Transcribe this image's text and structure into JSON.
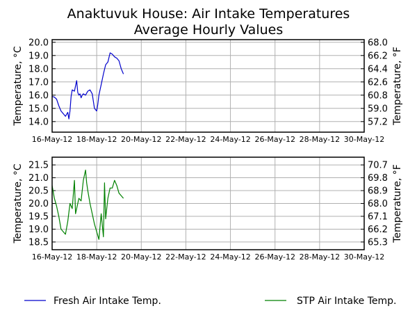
{
  "chart_data": {
    "title": "Anaktuvuk House: Air Intake Temperatures",
    "subtitle": "Average Hourly Values",
    "x_tick_labels": [
      "16-May-12",
      "18-May-12",
      "20-May-12",
      "22-May-12",
      "24-May-12",
      "26-May-12",
      "28-May-12",
      "30-May-12"
    ],
    "legend_placement": "bottom",
    "charts": [
      {
        "type": "line",
        "ylabel_left": "Temperature, °C",
        "ylabel_right": "Temperature, °F",
        "ylim": [
          13.2,
          20.2
        ],
        "y_ticks_left": [
          "14.0",
          "15.0",
          "16.0",
          "17.0",
          "18.0",
          "19.0",
          "20.0"
        ],
        "y_ticks_right": [
          "57.2",
          "59.0",
          "60.8",
          "62.6",
          "64.4",
          "66.2",
          "68.0"
        ],
        "grid": true,
        "series": [
          {
            "name": "Fresh Air Intake Temp.",
            "color": "#0000cc",
            "x": [
              0,
              0.1,
              0.2,
              0.3,
              0.4,
              0.5,
              0.6,
              0.7,
              0.75,
              0.8,
              0.85,
              0.9,
              1.0,
              1.1,
              1.15,
              1.2,
              1.25,
              1.3,
              1.35,
              1.4,
              1.5,
              1.6,
              1.7,
              1.8,
              1.9,
              2.0,
              2.05,
              2.1,
              2.2,
              2.3,
              2.4,
              2.5,
              2.6,
              2.7,
              2.8,
              2.9,
              3.0,
              3.1,
              3.2,
              3.3,
              3.4,
              3.5,
              3.55,
              3.6
            ],
            "y": [
              15.9,
              15.85,
              15.7,
              15.2,
              14.8,
              14.6,
              14.4,
              14.7,
              14.2,
              14.8,
              15.9,
              16.4,
              16.3,
              17.1,
              16.2,
              16.0,
              16.1,
              15.8,
              16.0,
              16.1,
              16.0,
              16.3,
              16.4,
              16.1,
              15.0,
              14.8,
              15.3,
              16.0,
              16.8,
              17.6,
              18.3,
              18.5,
              19.2,
              19.1,
              18.9,
              18.8,
              18.6,
              18.0,
              17.6,
              null,
              null,
              null,
              null,
              null
            ]
          }
        ]
      },
      {
        "type": "line",
        "ylabel_left": "Temperature, °C",
        "ylabel_right": "Temperature, °F",
        "ylim": [
          18.2,
          21.8
        ],
        "y_ticks_left": [
          "18.5",
          "19.0",
          "19.5",
          "20.0",
          "20.5",
          "21.0",
          "21.5"
        ],
        "y_ticks_right": [
          "65.3",
          "66.2",
          "67.1",
          "68.0",
          "68.9",
          "69.8",
          "70.7"
        ],
        "grid": true,
        "series": [
          {
            "name": "STP Air Intake Temp.",
            "color": "#008000",
            "x": [
              0,
              0.1,
              0.2,
              0.3,
              0.4,
              0.5,
              0.6,
              0.7,
              0.8,
              0.9,
              1.0,
              1.05,
              1.1,
              1.2,
              1.3,
              1.4,
              1.5,
              1.55,
              1.6,
              1.7,
              1.8,
              1.9,
              2.0,
              2.1,
              2.2,
              2.3,
              2.35,
              2.4,
              2.5,
              2.6,
              2.7,
              2.8,
              2.9,
              3.0,
              3.1,
              3.2,
              3.3,
              3.4,
              3.5
            ],
            "y": [
              20.7,
              20.2,
              19.9,
              19.5,
              19.0,
              18.9,
              18.8,
              19.3,
              20.0,
              19.8,
              20.9,
              19.6,
              19.8,
              20.2,
              20.1,
              20.9,
              21.3,
              20.8,
              20.5,
              20.0,
              19.6,
              19.2,
              18.9,
              18.6,
              19.6,
              18.7,
              20.8,
              19.4,
              20.2,
              20.6,
              20.6,
              20.9,
              20.7,
              20.4,
              20.3,
              20.2,
              null,
              null,
              null
            ]
          }
        ]
      }
    ]
  }
}
